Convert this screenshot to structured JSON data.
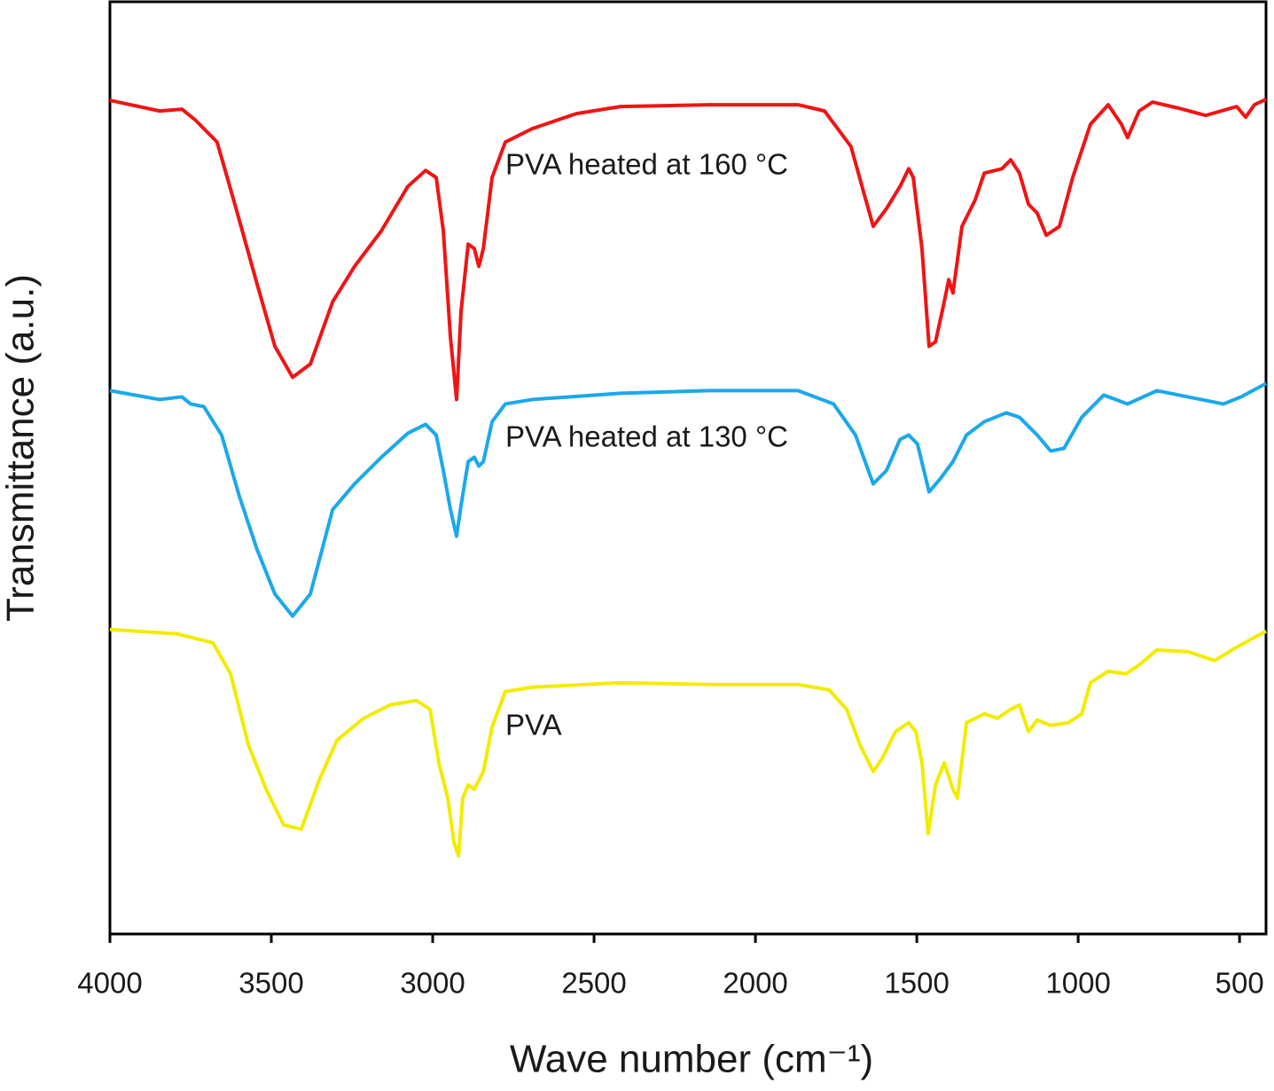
{
  "chart_data": {
    "type": "line",
    "x_label": "Wave number (cm⁻¹)",
    "y_label": "Transmittance (a.u.)",
    "xlim": [
      4000,
      418
    ],
    "ylim": [
      0,
      105
    ],
    "xticks": [
      4000,
      3500,
      3000,
      2500,
      2000,
      1500,
      1000,
      500
    ],
    "series": [
      {
        "name": "PVA heated at 160 °C",
        "color": "#f01414",
        "x": [
          4000,
          3846,
          3777,
          3736,
          3668,
          3613,
          3544,
          3489,
          3434,
          3379,
          3310,
          3242,
          3159,
          3077,
          3022,
          2989,
          2967,
          2945,
          2926,
          2912,
          2890,
          2871,
          2857,
          2843,
          2816,
          2775,
          2692,
          2555,
          2418,
          2143,
          1868,
          1786,
          1704,
          1662,
          1635,
          1594,
          1552,
          1525,
          1511,
          1484,
          1462,
          1442,
          1415,
          1401,
          1388,
          1360,
          1319,
          1291,
          1236,
          1209,
          1182,
          1154,
          1127,
          1099,
          1058,
          1017,
          962,
          907,
          866,
          847,
          811,
          770,
          687,
          605,
          509,
          481,
          454,
          418
        ],
        "values": [
          93.9,
          92.7,
          92.9,
          91.7,
          89.2,
          82.2,
          73.2,
          66.2,
          62.7,
          64.2,
          71.2,
          75.2,
          79.2,
          84.2,
          86.0,
          85.2,
          79.2,
          67.2,
          60.2,
          70.2,
          77.7,
          77.2,
          75.2,
          77.2,
          85.2,
          89.2,
          90.7,
          92.4,
          93.2,
          93.4,
          93.4,
          92.7,
          88.7,
          83.2,
          79.7,
          81.7,
          84.2,
          86.2,
          85.2,
          77.2,
          66.2,
          66.7,
          71.2,
          73.7,
          72.2,
          79.7,
          82.7,
          85.7,
          86.2,
          87.2,
          85.7,
          82.2,
          81.2,
          78.7,
          79.7,
          85.2,
          91.2,
          93.4,
          91.2,
          89.7,
          92.7,
          93.7,
          93.0,
          92.2,
          93.2,
          92.0,
          93.4,
          94.0
        ]
      },
      {
        "name": "PVA heated at 130 °C",
        "color": "#1ba8ec",
        "x": [
          4000,
          3846,
          3777,
          3750,
          3709,
          3654,
          3599,
          3544,
          3489,
          3434,
          3379,
          3310,
          3242,
          3159,
          3077,
          3022,
          2989,
          2967,
          2945,
          2926,
          2912,
          2890,
          2871,
          2857,
          2843,
          2816,
          2775,
          2692,
          2418,
          2143,
          1868,
          1758,
          1690,
          1635,
          1594,
          1552,
          1525,
          1498,
          1462,
          1429,
          1388,
          1346,
          1291,
          1223,
          1182,
          1127,
          1085,
          1044,
          989,
          921,
          847,
          756,
          660,
          550,
          495,
          418
        ],
        "values": [
          61.2,
          60.2,
          60.5,
          59.7,
          59.4,
          56.2,
          49.3,
          43.3,
          38.3,
          35.8,
          38.3,
          47.8,
          50.7,
          53.7,
          56.4,
          57.4,
          56.2,
          52.2,
          47.8,
          44.8,
          48.3,
          53.2,
          53.7,
          52.7,
          53.2,
          57.7,
          59.7,
          60.2,
          60.9,
          61.2,
          61.2,
          59.7,
          56.2,
          50.7,
          52.2,
          55.7,
          56.2,
          55.2,
          49.8,
          51.2,
          53.2,
          56.2,
          57.7,
          58.7,
          58.2,
          56.2,
          54.4,
          54.7,
          58.2,
          60.7,
          59.7,
          61.2,
          60.5,
          59.7,
          60.5,
          62.0
        ]
      },
      {
        "name": "PVA",
        "color": "#f2ec00",
        "x": [
          4000,
          3791,
          3681,
          3626,
          3571,
          3516,
          3462,
          3407,
          3352,
          3297,
          3214,
          3132,
          3050,
          3008,
          2981,
          2953,
          2934,
          2920,
          2907,
          2890,
          2871,
          2843,
          2816,
          2775,
          2692,
          2418,
          2143,
          1868,
          1772,
          1717,
          1676,
          1635,
          1607,
          1566,
          1525,
          1503,
          1484,
          1465,
          1442,
          1415,
          1388,
          1374,
          1346,
          1291,
          1250,
          1209,
          1182,
          1154,
          1127,
          1085,
          1030,
          989,
          962,
          907,
          852,
          811,
          756,
          660,
          577,
          509,
          418
        ],
        "values": [
          34.3,
          33.8,
          32.8,
          29.3,
          21.3,
          16.3,
          12.3,
          11.8,
          17.3,
          21.8,
          24.3,
          25.8,
          26.3,
          25.3,
          19.3,
          15.3,
          10.3,
          8.8,
          15.3,
          16.8,
          16.3,
          18.3,
          23.3,
          27.3,
          27.8,
          28.3,
          28.1,
          28.1,
          27.5,
          25.3,
          21.3,
          18.3,
          19.8,
          22.8,
          23.8,
          22.8,
          19.3,
          11.3,
          16.8,
          19.3,
          16.3,
          15.3,
          23.8,
          24.8,
          24.3,
          25.3,
          25.8,
          22.8,
          24.1,
          23.5,
          23.8,
          24.8,
          28.3,
          29.6,
          29.3,
          30.3,
          32.0,
          31.8,
          30.8,
          32.3,
          34.1
        ]
      }
    ]
  }
}
